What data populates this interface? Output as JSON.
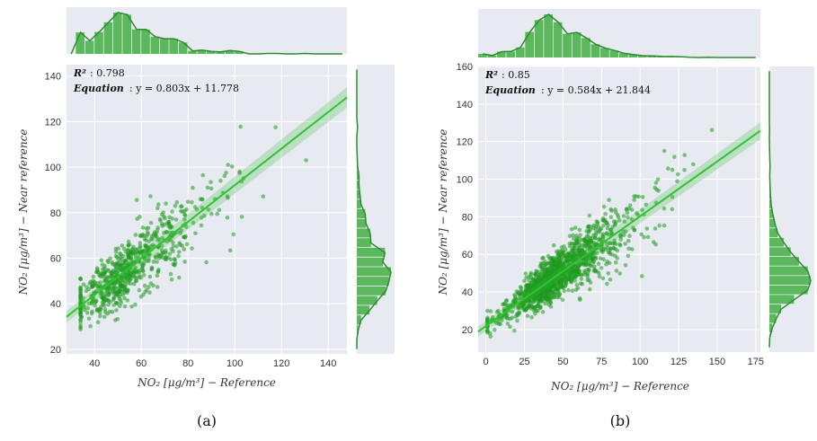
{
  "colors": {
    "panel_bg": "#e8eaf2",
    "grid": "#ffffff",
    "points": "#1f9a1f",
    "line": "#35c035",
    "bar": "#5cb85c"
  },
  "chart_data": [
    {
      "type": "scatter",
      "caption": "(a)",
      "xlabel": "NO₂ [μg/m³] − Reference",
      "ylabel": "NO₂ [μg/m³] − Near reference",
      "xlim": [
        28,
        148
      ],
      "ylim": [
        18,
        145
      ],
      "xticks": [
        40,
        60,
        80,
        100,
        120,
        140
      ],
      "yticks": [
        20,
        40,
        60,
        80,
        100,
        120,
        140
      ],
      "r2_label": "R²",
      "r2_value": ": 0.798",
      "eq_label": "Equation",
      "eq_value": ": y = 0.803x + 11.778",
      "slope": 0.803,
      "intercept": 11.778,
      "n_points": 700,
      "x_center": 55,
      "x_spread": 15,
      "noise": 7,
      "grid": true,
      "marginal_histograms": true
    },
    {
      "type": "scatter",
      "caption": "(b)",
      "xlabel": "NO₂ [μg/m³] − Reference",
      "ylabel": "NO₂ [μg/m³] − Near reference",
      "xlim": [
        -5,
        178
      ],
      "ylim": [
        8,
        160
      ],
      "xticks": [
        0,
        25,
        50,
        75,
        100,
        125,
        150,
        175
      ],
      "yticks": [
        20,
        40,
        60,
        80,
        100,
        120,
        140,
        160
      ],
      "r2_label": "R²",
      "r2_value": ": 0.85",
      "eq_label": "Equation",
      "eq_value": ": y = 0.584x + 21.844",
      "slope": 0.584,
      "intercept": 21.844,
      "n_points": 1400,
      "x_center": 45,
      "x_spread": 20,
      "noise": 6,
      "grid": true,
      "marginal_histograms": true
    }
  ]
}
